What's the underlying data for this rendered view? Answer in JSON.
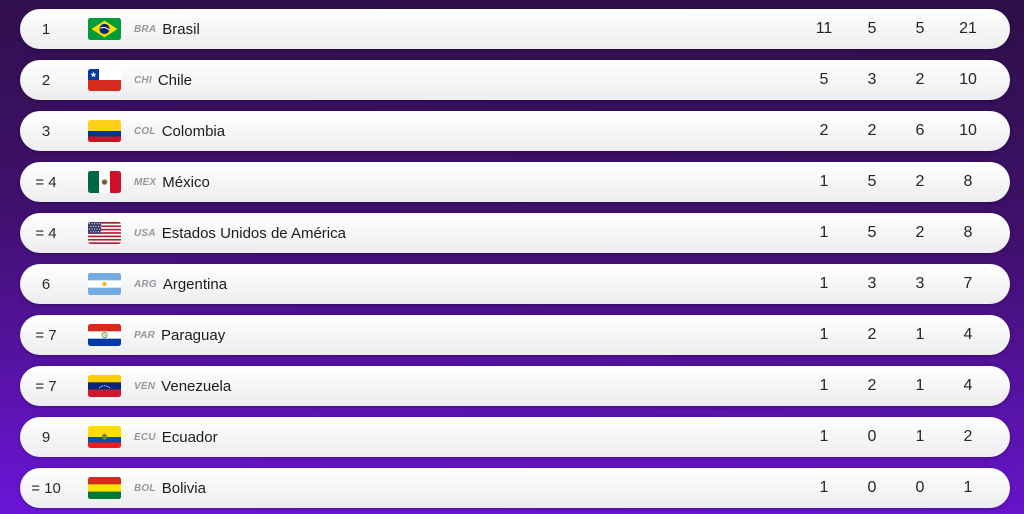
{
  "theme": {
    "background_top": "#2d0f47",
    "background_mid": "#41106e",
    "background_bottom": "#6b15d8",
    "row_background": "#f7f7f9"
  },
  "medal_table": {
    "rows": [
      {
        "rank": "1",
        "code": "BRA",
        "country": "Brasil",
        "values": [
          "11",
          "5",
          "5",
          "21"
        ]
      },
      {
        "rank": "2",
        "code": "CHI",
        "country": "Chile",
        "values": [
          "5",
          "3",
          "2",
          "10"
        ]
      },
      {
        "rank": "3",
        "code": "COL",
        "country": "Colombia",
        "values": [
          "2",
          "2",
          "6",
          "10"
        ]
      },
      {
        "rank": "= 4",
        "code": "MEX",
        "country": "México",
        "values": [
          "1",
          "5",
          "2",
          "8"
        ]
      },
      {
        "rank": "= 4",
        "code": "USA",
        "country": "Estados Unidos de América",
        "values": [
          "1",
          "5",
          "2",
          "8"
        ]
      },
      {
        "rank": "6",
        "code": "ARG",
        "country": "Argentina",
        "values": [
          "1",
          "3",
          "3",
          "7"
        ]
      },
      {
        "rank": "= 7",
        "code": "PAR",
        "country": "Paraguay",
        "values": [
          "1",
          "2",
          "1",
          "4"
        ]
      },
      {
        "rank": "= 7",
        "code": "VEN",
        "country": "Venezuela",
        "values": [
          "1",
          "2",
          "1",
          "4"
        ]
      },
      {
        "rank": "9",
        "code": "ECU",
        "country": "Ecuador",
        "values": [
          "1",
          "0",
          "1",
          "2"
        ]
      },
      {
        "rank": "= 10",
        "code": "BOL",
        "country": "Bolivia",
        "values": [
          "1",
          "0",
          "0",
          "1"
        ]
      }
    ]
  }
}
